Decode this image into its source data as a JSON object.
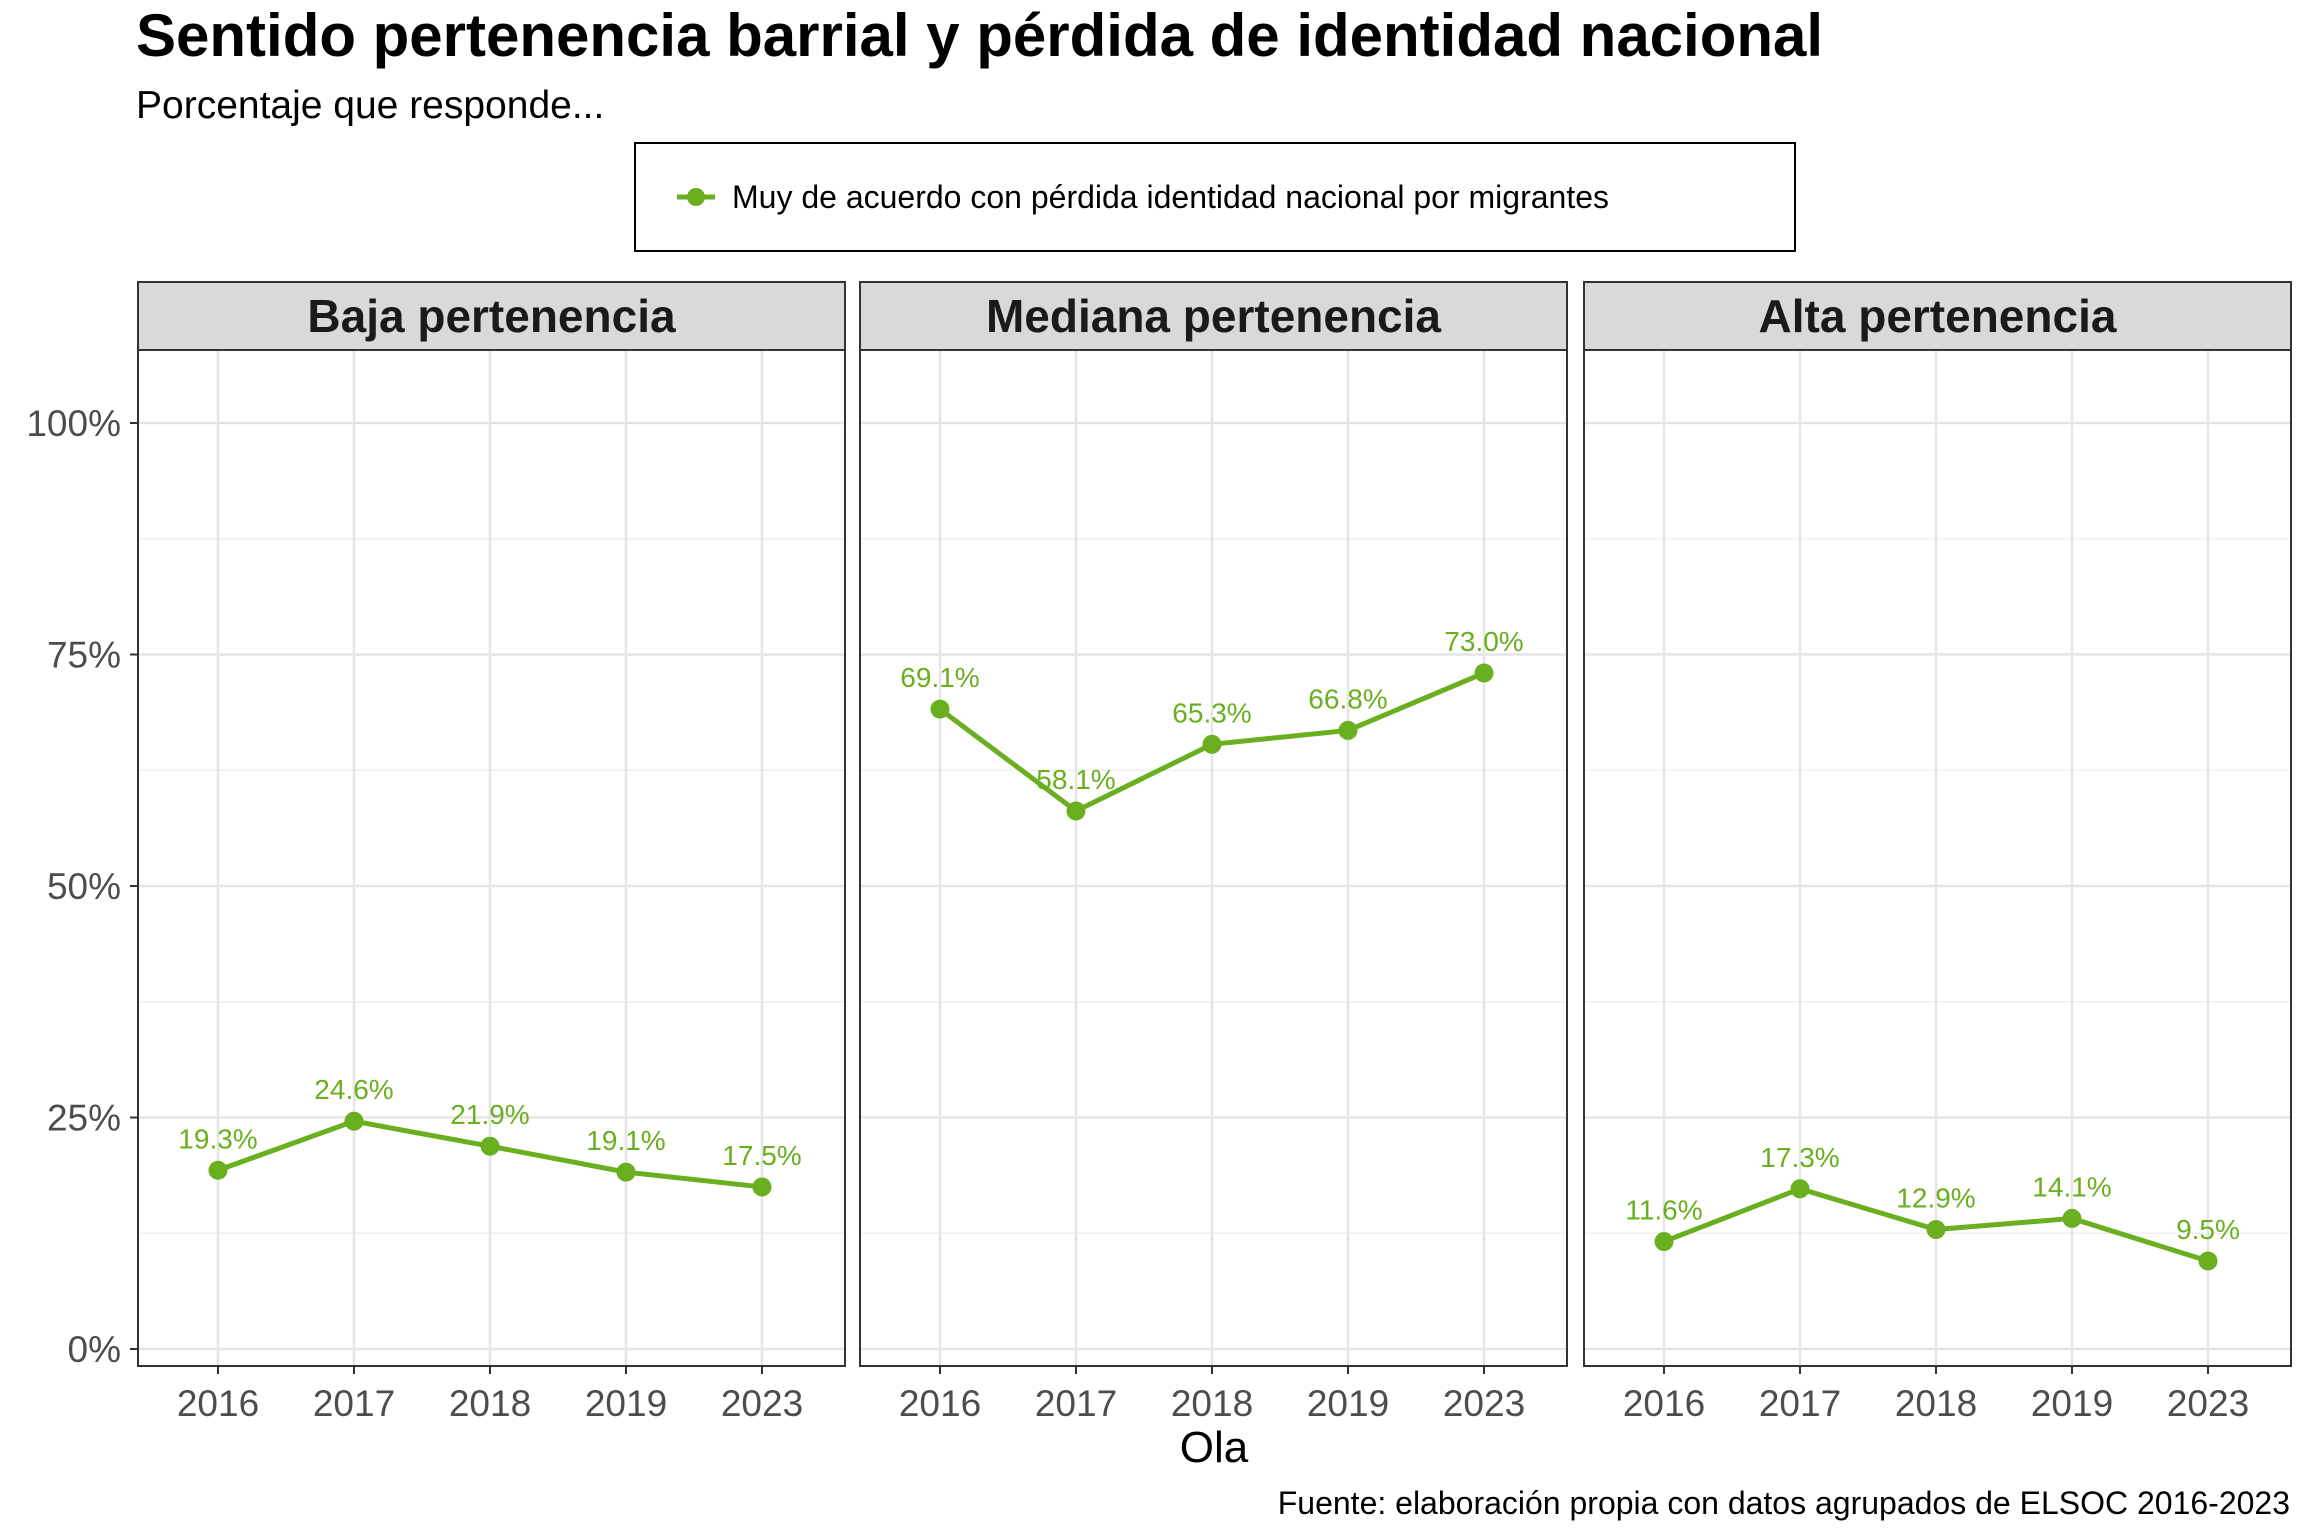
{
  "chart_data": {
    "type": "line",
    "title": "Sentido pertenencia barrial y pérdida de identidad nacional",
    "subtitle": "Porcentaje que responde...",
    "xlabel": "Ola",
    "ylabel": "",
    "caption": "Fuente: elaboración propia con datos agrupados de ELSOC 2016-2023",
    "categories": [
      "2016",
      "2017",
      "2018",
      "2019",
      "2023"
    ],
    "ylim": [
      0,
      1.1
    ],
    "yticks": [
      0,
      0.25,
      0.5,
      0.75,
      1.0
    ],
    "ytick_labels": [
      "0%",
      "25%",
      "50%",
      "75%",
      "100%"
    ],
    "grid": true,
    "legend_position": "top",
    "color": "#6aaf1f",
    "legend": {
      "label": "Muy de acuerdo con pérdida identidad nacional por migrantes"
    },
    "panels": [
      {
        "name": "Baja pertenencia",
        "values": [
          0.193,
          0.246,
          0.219,
          0.191,
          0.175
        ],
        "labels": [
          "19.3%",
          "24.6%",
          "21.9%",
          "19.1%",
          "17.5%"
        ]
      },
      {
        "name": "Mediana pertenencia",
        "values": [
          0.691,
          0.581,
          0.653,
          0.668,
          0.73
        ],
        "labels": [
          "69.1%",
          "58.1%",
          "65.3%",
          "66.8%",
          "73.0%"
        ]
      },
      {
        "name": "Alta pertenencia",
        "values": [
          0.116,
          0.173,
          0.129,
          0.141,
          0.095
        ],
        "labels": [
          "11.6%",
          "17.3%",
          "12.9%",
          "14.1%",
          "9.5%"
        ]
      }
    ]
  }
}
